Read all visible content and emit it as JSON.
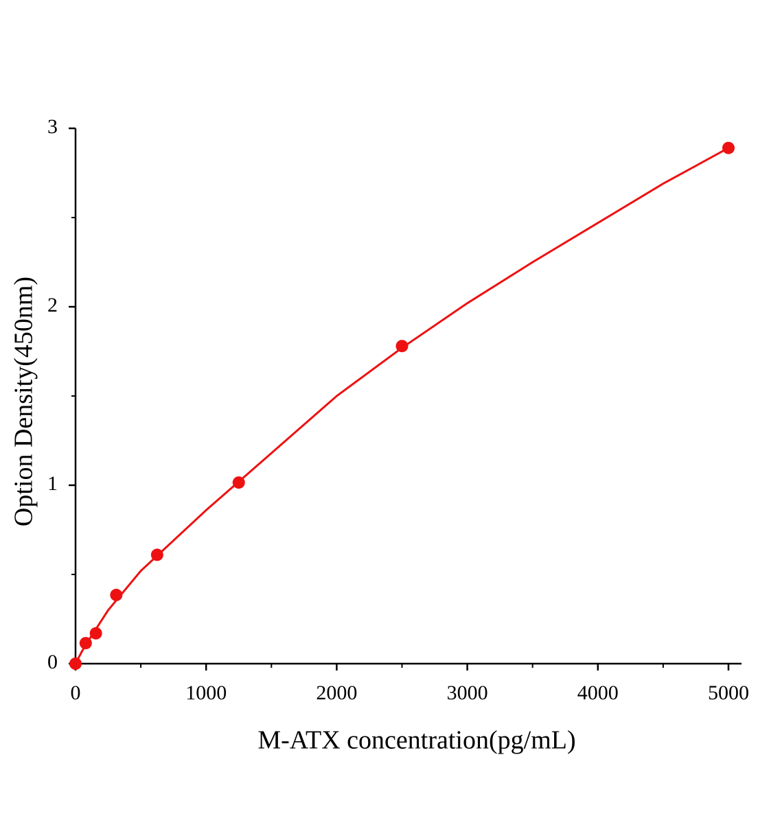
{
  "chart_data": {
    "type": "scatter",
    "x_label": "M-ATX concentration(pg/mL)",
    "y_label": "Option Density(450nm)",
    "xlim": [
      0,
      5100
    ],
    "xticks": [
      0,
      1000,
      2000,
      3000,
      4000,
      5000
    ],
    "ylim": [
      0,
      3
    ],
    "yticks": [
      0,
      1,
      2,
      3
    ],
    "series": [
      {
        "x": [
          0,
          78,
          156,
          312,
          625,
          1250,
          2500,
          5000
        ],
        "values": [
          0,
          0.115,
          0.17,
          0.385,
          0.61,
          1.015,
          1.78,
          2.89
        ],
        "color": "#ee1111"
      }
    ],
    "fit": {
      "x": [
        0,
        50,
        100,
        250,
        500,
        1000,
        1500,
        2000,
        2500,
        3000,
        3500,
        4000,
        4500,
        5000
      ],
      "values": [
        0,
        0.07,
        0.13,
        0.3,
        0.52,
        0.86,
        1.18,
        1.5,
        1.77,
        2.02,
        2.25,
        2.47,
        2.69,
        2.89
      ],
      "color": "#ee1111"
    }
  }
}
